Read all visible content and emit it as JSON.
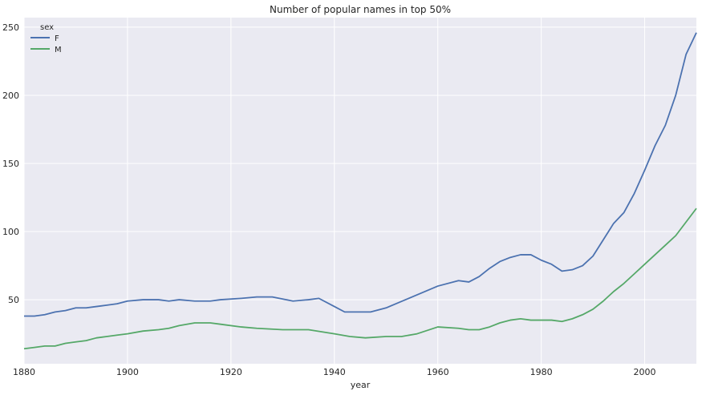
{
  "chart_data": {
    "type": "line",
    "title": "Number of popular names in top 50%",
    "xlabel": "year",
    "ylabel": "",
    "xlim": [
      1880,
      2010
    ],
    "ylim": [
      3,
      257
    ],
    "xticks": [
      1880,
      1900,
      1920,
      1940,
      1960,
      1980,
      2000
    ],
    "yticks": [
      50,
      100,
      150,
      200,
      250
    ],
    "grid": true,
    "legend": {
      "title": "sex",
      "placement": "top-left"
    },
    "colors": {
      "background": "#eaeaf2",
      "grid": "#ffffff",
      "F": "#4c72b0",
      "M": "#55a868"
    },
    "series": [
      {
        "name": "F",
        "x": [
          1880,
          1882,
          1884,
          1886,
          1888,
          1890,
          1892,
          1894,
          1896,
          1898,
          1900,
          1903,
          1906,
          1908,
          1910,
          1913,
          1916,
          1918,
          1922,
          1925,
          1928,
          1932,
          1935,
          1937,
          1940,
          1942,
          1944,
          1947,
          1950,
          1955,
          1960,
          1964,
          1966,
          1968,
          1970,
          1972,
          1974,
          1976,
          1978,
          1980,
          1982,
          1984,
          1986,
          1988,
          1990,
          1992,
          1994,
          1996,
          1998,
          2000,
          2002,
          2004,
          2006,
          2008,
          2010
        ],
        "values": [
          38,
          38,
          39,
          41,
          42,
          44,
          44,
          45,
          46,
          47,
          49,
          50,
          50,
          49,
          50,
          49,
          49,
          50,
          51,
          52,
          52,
          49,
          50,
          51,
          45,
          41,
          41,
          41,
          44,
          52,
          60,
          64,
          63,
          67,
          73,
          78,
          81,
          83,
          83,
          79,
          76,
          71,
          72,
          75,
          82,
          94,
          106,
          114,
          128,
          145,
          163,
          178,
          200,
          230,
          246
        ]
      },
      {
        "name": "M",
        "x": [
          1880,
          1882,
          1884,
          1886,
          1888,
          1890,
          1892,
          1894,
          1896,
          1898,
          1900,
          1903,
          1906,
          1908,
          1910,
          1913,
          1916,
          1918,
          1922,
          1925,
          1930,
          1935,
          1940,
          1943,
          1946,
          1950,
          1953,
          1956,
          1960,
          1964,
          1966,
          1968,
          1970,
          1972,
          1974,
          1976,
          1978,
          1980,
          1982,
          1984,
          1986,
          1988,
          1990,
          1992,
          1994,
          1996,
          1998,
          2000,
          2002,
          2004,
          2006,
          2008,
          2010
        ],
        "values": [
          14,
          15,
          16,
          16,
          18,
          19,
          20,
          22,
          23,
          24,
          25,
          27,
          28,
          29,
          31,
          33,
          33,
          32,
          30,
          29,
          28,
          28,
          25,
          23,
          22,
          23,
          23,
          25,
          30,
          29,
          28,
          28,
          30,
          33,
          35,
          36,
          35,
          35,
          35,
          34,
          36,
          39,
          43,
          49,
          56,
          62,
          69,
          76,
          83,
          90,
          97,
          107,
          117
        ]
      }
    ]
  }
}
